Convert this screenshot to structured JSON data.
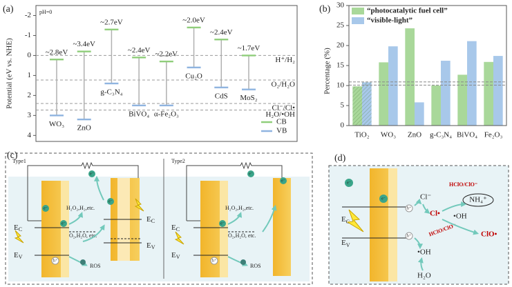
{
  "chart_data": [
    {
      "type": "band",
      "panel_label": "(a)",
      "y_label": "Potential (eV vs. NHE)",
      "annotation": "pH=0",
      "axis_inverted": true,
      "materials": [
        "WO₃",
        "ZnO",
        "g-C₃N₄",
        "BiVO₄",
        "α-Fe₂O₃",
        "Cu₂O",
        "CdS",
        "MoS₂"
      ],
      "series": [
        {
          "name": "CB",
          "color": "#8fce7a",
          "values": [
            0.2,
            -0.2,
            -1.3,
            0.1,
            0.3,
            -1.4,
            -0.8,
            0
          ]
        },
        {
          "name": "VB",
          "color": "#8fb4e0",
          "values": [
            3.0,
            3.2,
            1.4,
            2.5,
            2.5,
            0.6,
            1.6,
            1.7
          ]
        }
      ],
      "gap_labels": [
        "~2.8eV",
        "~3.4eV",
        "~2.7eV",
        "~2.4eV",
        "~2.2eV",
        "~2.0eV",
        "~2.4eV",
        "~1.7eV"
      ],
      "redox_levels": [
        {
          "label": "H⁺/H₂",
          "value": 0
        },
        {
          "label": "O₂/H₂O",
          "value": 1.23
        },
        {
          "label": "Cl⁻/Cl•",
          "value": 2.4
        },
        {
          "label": "H₂O/•OH",
          "value": 2.73
        }
      ],
      "ylim": [
        -2.5,
        4.3
      ],
      "yticks": [
        -2,
        -1,
        0,
        1,
        2,
        3,
        4
      ],
      "legend": "lower right"
    },
    {
      "type": "bar",
      "panel_label": "(b)",
      "y_label": "Percentage (%)",
      "categories": [
        "TiO₂",
        "WO₃",
        "ZnO",
        "g-C₃N₄",
        "BiVO₄",
        "Fe₂O₃"
      ],
      "series": [
        {
          "name": "“photocatalytic fuel cell”",
          "color": "#a9d89a",
          "values": [
            9.8,
            15.8,
            24.3,
            10,
            12.7,
            15.9
          ]
        },
        {
          "name": "“visible-light”",
          "color": "#a8c8ea",
          "values": [
            10.8,
            19.8,
            5.8,
            16.2,
            21.1,
            17.4
          ]
        }
      ],
      "hatched": [
        true,
        false,
        false,
        false,
        false,
        false
      ],
      "reference_lines": [
        10.1,
        10.9
      ],
      "ylim": [
        0,
        30
      ],
      "yticks": [
        0,
        5,
        10,
        15,
        20,
        25,
        30
      ],
      "legend": "upper left"
    }
  ],
  "panel_c": {
    "label": "(c)",
    "type1": "Type1",
    "type2": "Type2",
    "ec": {
      "main": "E",
      "sub": "C"
    },
    "ev": {
      "main": "E",
      "sub": "V"
    },
    "products": "H₂O₂,H₂,etc.",
    "reactants": "O₂,H₂O, etc.",
    "ros": "ROS",
    "electron": "e⁻",
    "hole": "h⁺"
  },
  "panel_d": {
    "label": "(d)",
    "ec": {
      "main": "E",
      "sub": "C"
    },
    "ev": {
      "main": "E",
      "sub": "V"
    },
    "cl": "Cl⁻",
    "nh4": "NH₄⁺",
    "hclo": "HClO/ClO⁻",
    "cl_rad": "Cl•",
    "oh": "•OH",
    "clo_rad": "ClO•",
    "h2o": "H₂O",
    "electron": "e⁻",
    "hole": "h⁺"
  }
}
